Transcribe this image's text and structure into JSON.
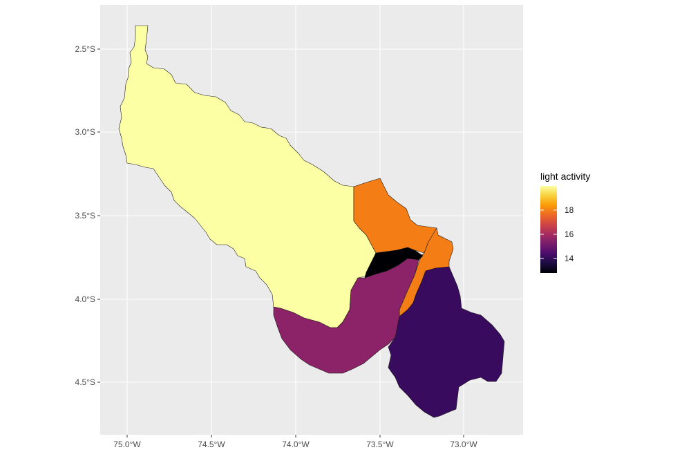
{
  "map": {
    "type": "choropleth",
    "x_ticks": [
      "75.0°W",
      "74.5°W",
      "74.0°W",
      "73.5°W",
      "73.0°W"
    ],
    "y_ticks": [
      "2.5°S",
      "3.0°S",
      "3.5°S",
      "4.0°S",
      "4.5°S"
    ],
    "panel_background": "#ebebeb",
    "grid_color": "#ffffff",
    "border_color": "#1a1a1a",
    "regions": [
      {
        "value": 20.0,
        "color": "#fcffa4"
      },
      {
        "value": 17.2,
        "color": "#f57d15"
      },
      {
        "value": 17.2,
        "color": "#f57d15"
      },
      {
        "value": 12.9,
        "color": "#000004"
      },
      {
        "value": 15.2,
        "color": "#8c2369"
      },
      {
        "value": 14.0,
        "color": "#380b5e"
      }
    ]
  },
  "legend": {
    "title": "light activity",
    "ticks": [
      "18",
      "16",
      "14"
    ],
    "tick_values": [
      18,
      16,
      14
    ],
    "range": [
      12.8,
      20.0
    ],
    "colors": [
      "#000004",
      "#1b0c41",
      "#4a0c6b",
      "#781c6d",
      "#a52c60",
      "#cf4446",
      "#ed6925",
      "#fb9b06",
      "#f7d13d",
      "#fcffa4"
    ]
  }
}
